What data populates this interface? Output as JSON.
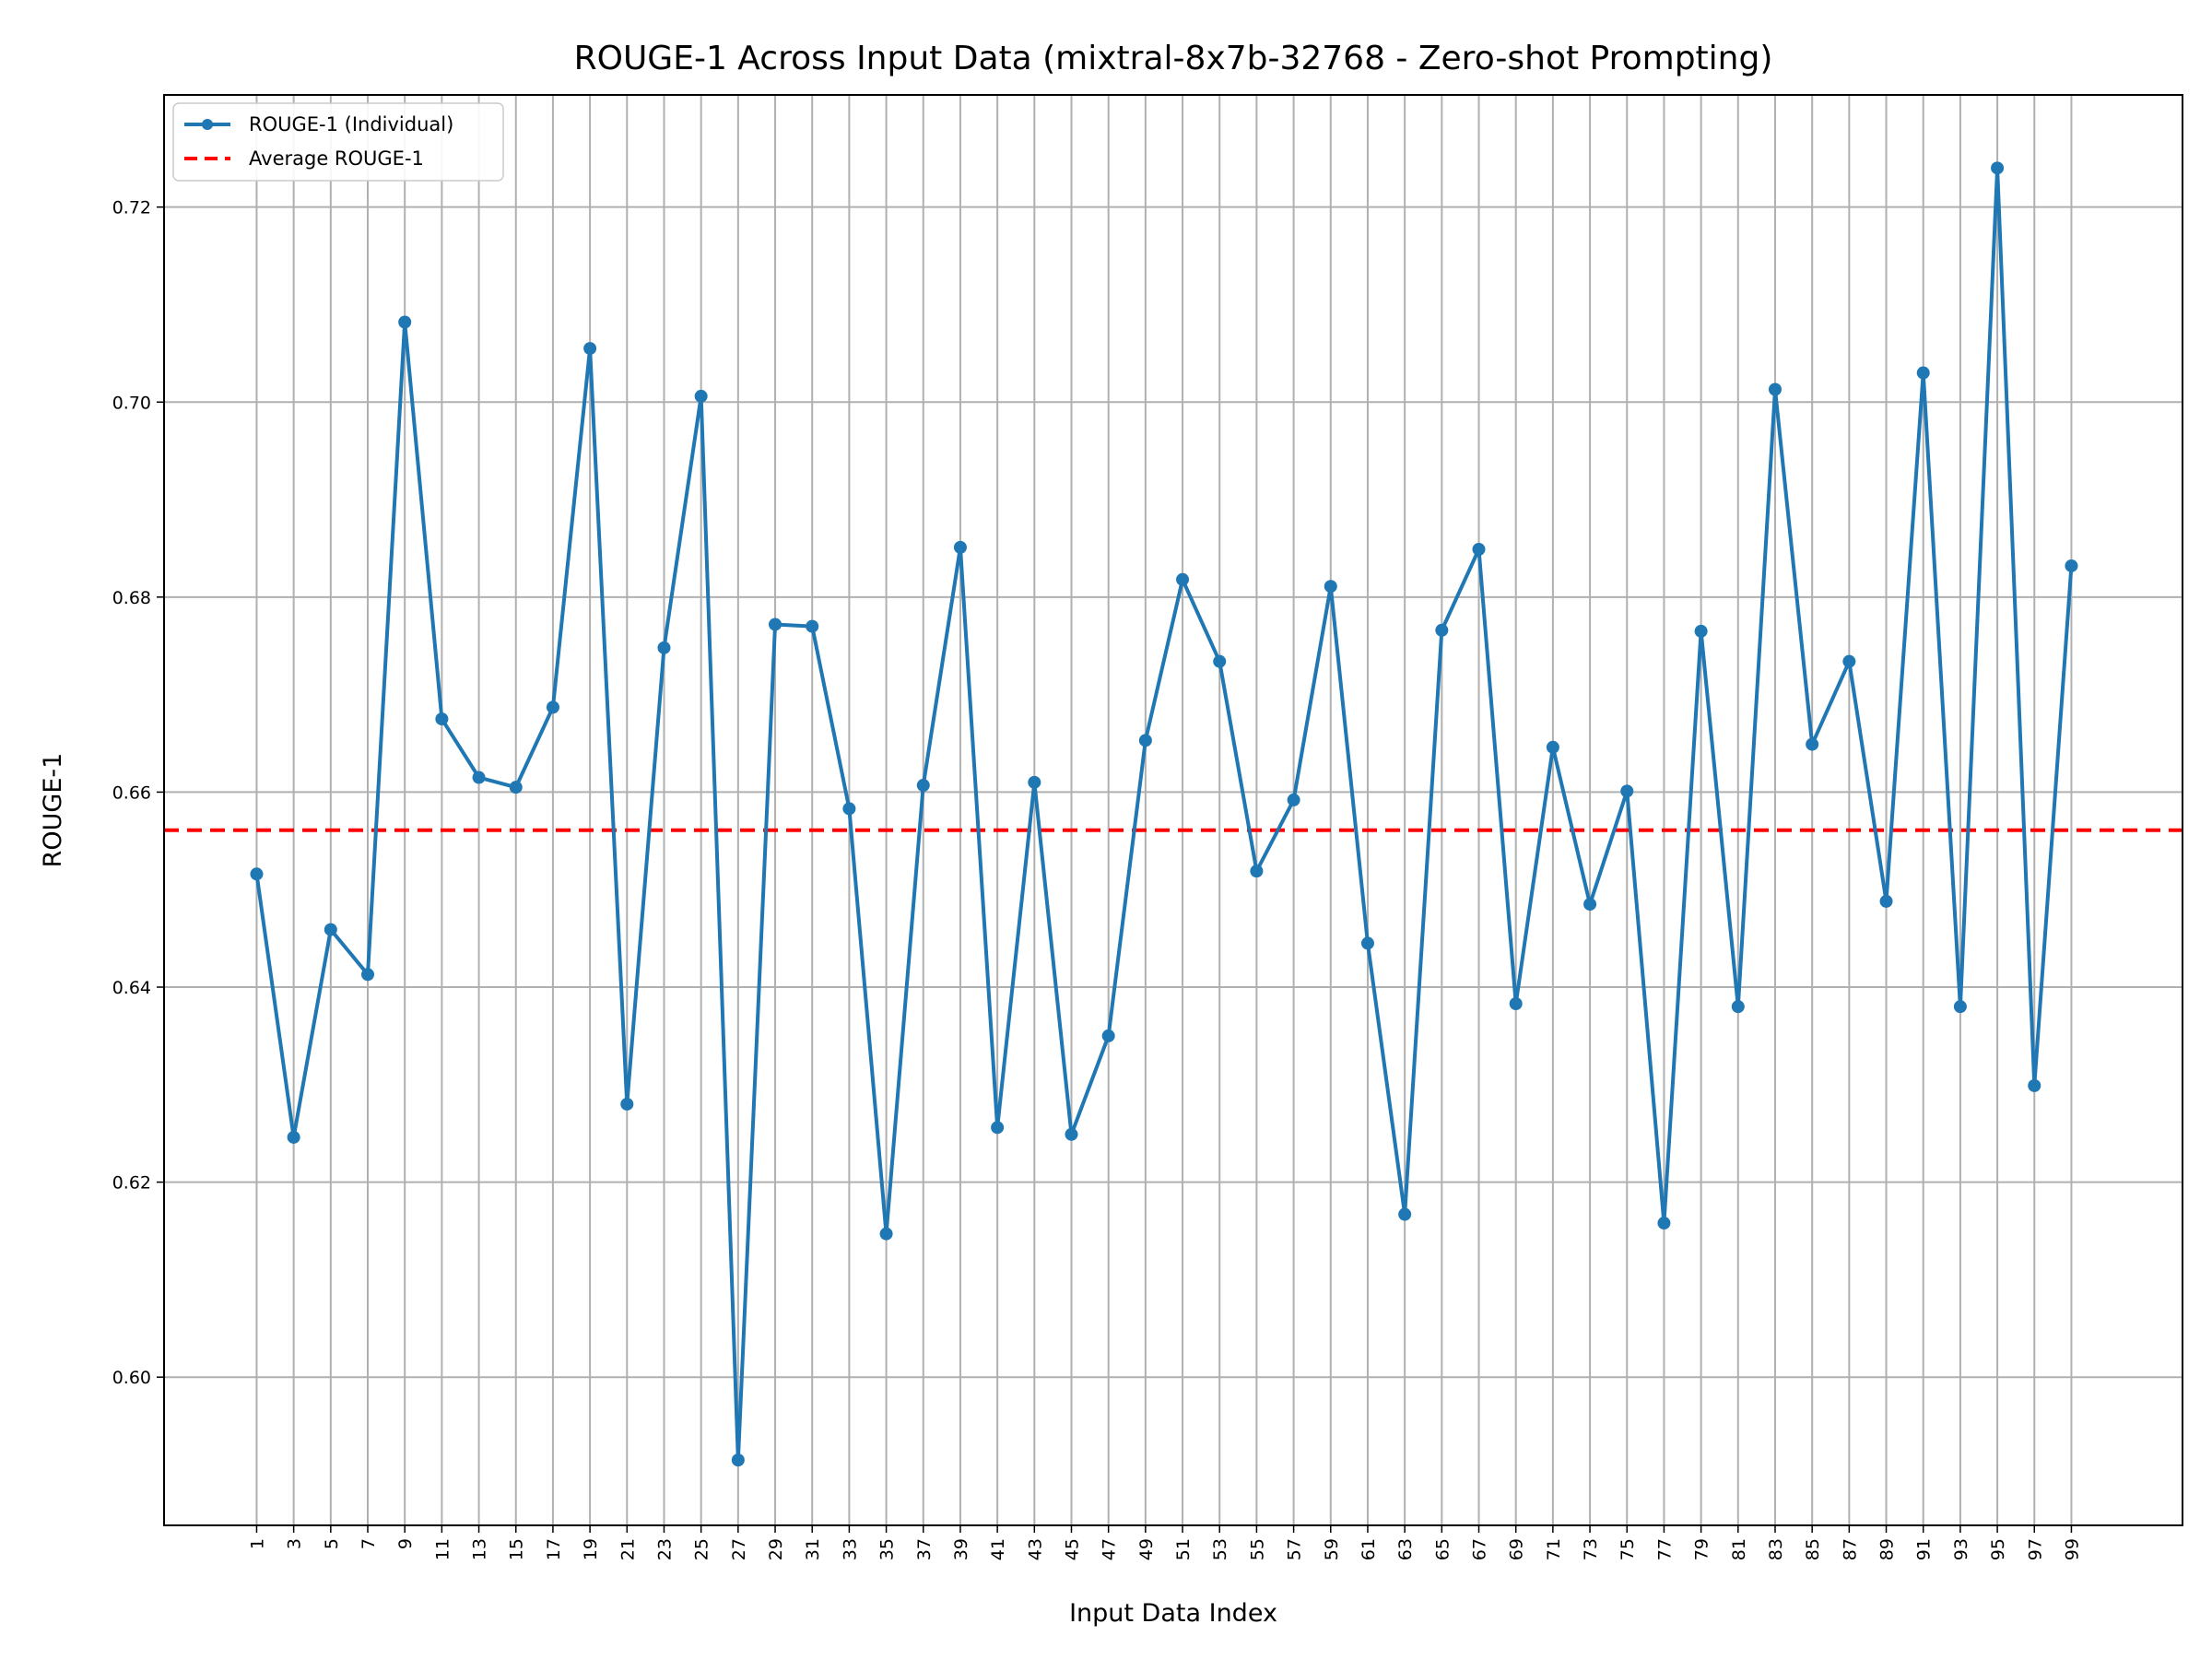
{
  "chart_data": {
    "type": "line",
    "title": "ROUGE-1 Across Input Data (mixtral-8x7b-32768 - Zero-shot Prompting)",
    "xlabel": "Input Data Index",
    "ylabel": "ROUGE-1",
    "x": [
      1,
      3,
      5,
      7,
      9,
      11,
      13,
      15,
      17,
      19,
      21,
      23,
      25,
      27,
      29,
      31,
      33,
      35,
      37,
      39,
      41,
      43,
      45,
      47,
      49,
      51,
      53,
      55,
      57,
      59,
      61,
      63,
      65,
      67,
      69,
      71,
      73,
      75,
      77,
      79,
      81,
      83,
      85,
      87,
      89,
      91,
      93,
      95,
      97,
      99
    ],
    "xticks": [
      "1",
      "3",
      "5",
      "7",
      "9",
      "11",
      "13",
      "15",
      "17",
      "19",
      "21",
      "23",
      "25",
      "27",
      "29",
      "31",
      "33",
      "35",
      "37",
      "39",
      "41",
      "43",
      "45",
      "47",
      "49",
      "51",
      "53",
      "55",
      "57",
      "59",
      "61",
      "63",
      "65",
      "67",
      "69",
      "71",
      "73",
      "75",
      "77",
      "79",
      "81",
      "83",
      "85",
      "87",
      "89",
      "91",
      "93",
      "95",
      "97",
      "99"
    ],
    "yticks": [
      "0.60",
      "0.62",
      "0.64",
      "0.66",
      "0.68",
      "0.70",
      "0.72"
    ],
    "ylim": [
      0.5848,
      0.7315
    ],
    "xlim": [
      -4.0,
      105.0
    ],
    "grid": true,
    "legend_position": "top-left",
    "series": [
      {
        "name": "ROUGE-1 (Individual)",
        "color": "#1f77b4",
        "style": "line-with-markers",
        "values": [
          0.6516,
          0.6246,
          0.6459,
          0.6413,
          0.7082,
          0.6675,
          0.6615,
          0.6605,
          0.6687,
          0.7055,
          0.628,
          0.6748,
          0.7006,
          0.5915,
          0.6772,
          0.677,
          0.6583,
          0.6147,
          0.6607,
          0.6851,
          0.6256,
          0.661,
          0.6249,
          0.635,
          0.6653,
          0.6818,
          0.6734,
          0.6519,
          0.6592,
          0.6811,
          0.6445,
          0.6167,
          0.6766,
          0.6849,
          0.6383,
          0.6646,
          0.6485,
          0.6601,
          0.6158,
          0.6765,
          0.638,
          0.7013,
          0.6649,
          0.6734,
          0.6488,
          0.703,
          0.638,
          0.724,
          0.6299,
          0.6832
        ]
      },
      {
        "name": "Average ROUGE-1",
        "color": "#ff0000",
        "style": "dashed-horizontal",
        "value": 0.6561
      }
    ]
  }
}
